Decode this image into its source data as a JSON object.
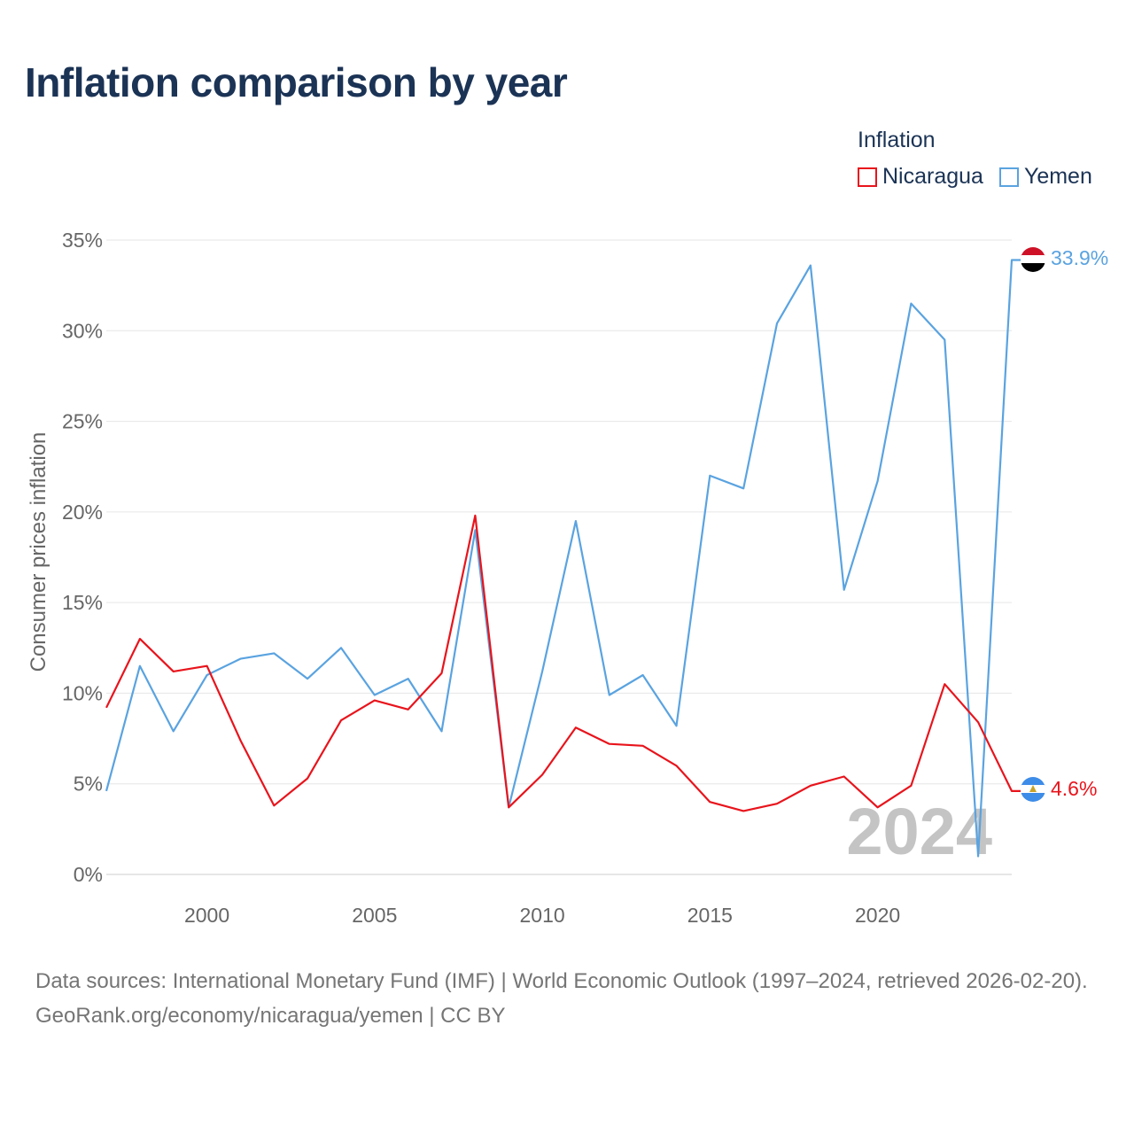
{
  "title": "Inflation comparison by year",
  "legend": {
    "title": "Inflation",
    "items": [
      {
        "label": "Nicaragua",
        "color": "#e8141c"
      },
      {
        "label": "Yemen",
        "color": "#5aa3e0"
      }
    ]
  },
  "watermark": "2024",
  "footer": {
    "sources": "Data sources: International Monetary Fund (IMF) | World Economic Outlook (1997–2024, retrieved 2026-02-20).",
    "credit": "GeoRank.org/economy/nicaragua/yemen | CC BY"
  },
  "chart_data": {
    "type": "line",
    "title": "Inflation comparison by year",
    "xlabel": "",
    "ylabel": "Consumer prices inflation",
    "xlim": [
      1997,
      2024
    ],
    "ylim": [
      0,
      35
    ],
    "x_ticks": [
      2000,
      2005,
      2010,
      2015,
      2020
    ],
    "y_ticks": [
      0,
      5,
      10,
      15,
      20,
      25,
      30,
      35
    ],
    "y_tick_labels": [
      "0%",
      "5%",
      "10%",
      "15%",
      "20%",
      "25%",
      "30%",
      "35%"
    ],
    "grid": true,
    "x": [
      1997,
      1998,
      1999,
      2000,
      2001,
      2002,
      2003,
      2004,
      2005,
      2006,
      2007,
      2008,
      2009,
      2010,
      2011,
      2012,
      2013,
      2014,
      2015,
      2016,
      2017,
      2018,
      2019,
      2020,
      2021,
      2022,
      2023,
      2024
    ],
    "series": [
      {
        "name": "Nicaragua",
        "color": "#e8141c",
        "end_label": "4.6%",
        "values": [
          9.2,
          13.0,
          11.2,
          11.5,
          7.4,
          3.8,
          5.3,
          8.5,
          9.6,
          9.1,
          11.1,
          19.8,
          3.7,
          5.5,
          8.1,
          7.2,
          7.1,
          6.0,
          4.0,
          3.5,
          3.9,
          4.9,
          5.4,
          3.7,
          4.9,
          10.5,
          8.4,
          4.6
        ]
      },
      {
        "name": "Yemen",
        "color": "#5aa3e0",
        "end_label": "33.9%",
        "values": [
          4.6,
          11.5,
          7.9,
          11.0,
          11.9,
          12.2,
          10.8,
          12.5,
          9.9,
          10.8,
          7.9,
          19.0,
          3.7,
          11.2,
          19.5,
          9.9,
          11.0,
          8.2,
          22.0,
          21.3,
          30.4,
          33.6,
          15.7,
          21.7,
          31.5,
          29.5,
          1.0,
          33.9
        ]
      }
    ]
  }
}
